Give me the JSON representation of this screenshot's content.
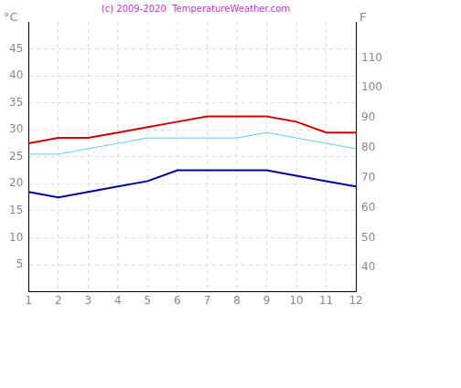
{
  "chart_data": {
    "type": "line",
    "title": "(c) 2009-2020  TemperatureWeather.com",
    "y_label": "°C",
    "y2_label": "F",
    "x": [
      1,
      2,
      3,
      4,
      5,
      6,
      7,
      8,
      9,
      10,
      11,
      12
    ],
    "xlim": [
      1,
      12
    ],
    "xticks": [
      1,
      2,
      3,
      4,
      5,
      6,
      7,
      8,
      9,
      10,
      11,
      12
    ],
    "ylim": [
      0,
      50
    ],
    "yticks": [
      5,
      10,
      15,
      20,
      25,
      30,
      35,
      40,
      45
    ],
    "y2lim": [
      32,
      122
    ],
    "y2ticks": [
      40,
      50,
      60,
      70,
      80,
      90,
      100,
      110
    ],
    "grid": true,
    "series": [
      {
        "color": "#cc0000",
        "values": [
          27.5,
          28.5,
          28.5,
          29.5,
          30.5,
          31.5,
          32.5,
          32.5,
          32.5,
          31.5,
          29.5,
          29.5
        ]
      },
      {
        "color": "#66ccdd",
        "values": [
          25.5,
          25.5,
          26.5,
          27.5,
          28.5,
          28.5,
          28.5,
          28.5,
          29.5,
          28.5,
          27.5,
          26.5
        ]
      },
      {
        "color": "#000099",
        "values": [
          18.5,
          17.5,
          18.5,
          19.5,
          20.5,
          22.5,
          22.5,
          22.5,
          22.5,
          21.5,
          20.5,
          19.5
        ]
      }
    ]
  }
}
